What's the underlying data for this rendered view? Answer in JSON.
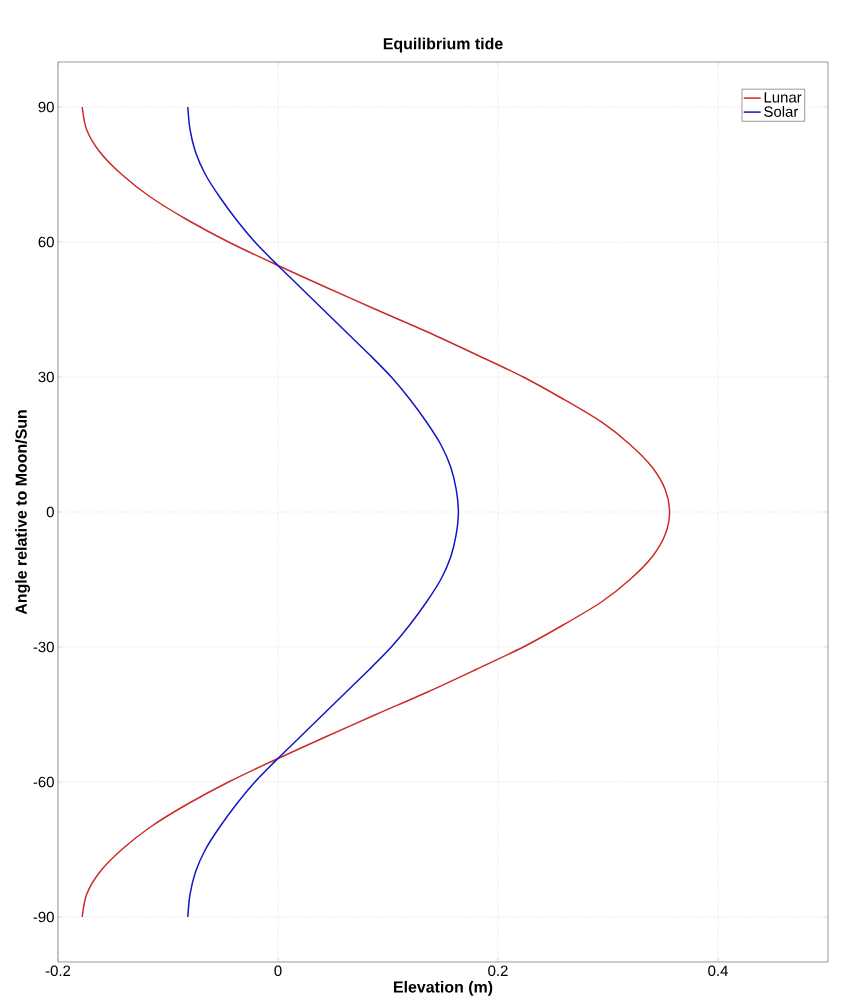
{
  "chart_data": {
    "type": "line",
    "title": "Equilibrium tide",
    "xlabel": "Elevation (m)",
    "ylabel": "Angle relative to Moon/Sun",
    "xlim": [
      -0.2,
      0.5
    ],
    "xticks": [
      -0.2,
      0,
      0.2,
      0.4
    ],
    "ylim": [
      -100,
      100
    ],
    "yticks": [
      -90,
      -60,
      -30,
      0,
      30,
      60,
      90
    ],
    "grid": true,
    "legend": "top right",
    "line_style": "solid",
    "marker": "none",
    "series": [
      {
        "name": "Lunar",
        "color": "#cc2a2a",
        "x": [
          -0.178,
          -0.174,
          -0.162,
          -0.142,
          -0.116,
          -0.083,
          -0.045,
          -0.002,
          0.043,
          0.089,
          0.136,
          0.18,
          0.223,
          0.26,
          0.294,
          0.32,
          0.34,
          0.352,
          0.356,
          0.352,
          0.34,
          0.32,
          0.294,
          0.26,
          0.223,
          0.18,
          0.136,
          0.089,
          0.043,
          -0.002,
          -0.045,
          -0.083,
          -0.116,
          -0.142,
          -0.162,
          -0.174,
          -0.178
        ],
        "values": [
          -90,
          -85,
          -80,
          -75,
          -70,
          -65,
          -60,
          -55,
          -50,
          -45,
          -40,
          -35,
          -30,
          -25,
          -20,
          -15,
          -10,
          -5,
          0,
          5,
          10,
          15,
          20,
          25,
          30,
          35,
          40,
          45,
          50,
          55,
          60,
          65,
          70,
          75,
          80,
          85,
          90
        ]
      },
      {
        "name": "Solar",
        "color": "#1414c8",
        "x": [
          -0.082,
          -0.08,
          -0.075,
          -0.066,
          -0.053,
          -0.038,
          -0.021,
          -0.001,
          0.02,
          0.041,
          0.062,
          0.083,
          0.103,
          0.12,
          0.135,
          0.148,
          0.157,
          0.162,
          0.164,
          0.162,
          0.157,
          0.148,
          0.135,
          0.12,
          0.103,
          0.083,
          0.062,
          0.041,
          0.02,
          -0.001,
          -0.021,
          -0.038,
          -0.053,
          -0.066,
          -0.075,
          -0.08,
          -0.082
        ],
        "values": [
          -90,
          -85,
          -80,
          -75,
          -70,
          -65,
          -60,
          -55,
          -50,
          -45,
          -40,
          -35,
          -30,
          -25,
          -20,
          -15,
          -10,
          -5,
          0,
          5,
          10,
          15,
          20,
          25,
          30,
          35,
          40,
          45,
          50,
          55,
          60,
          65,
          70,
          75,
          80,
          85,
          90
        ]
      }
    ]
  }
}
